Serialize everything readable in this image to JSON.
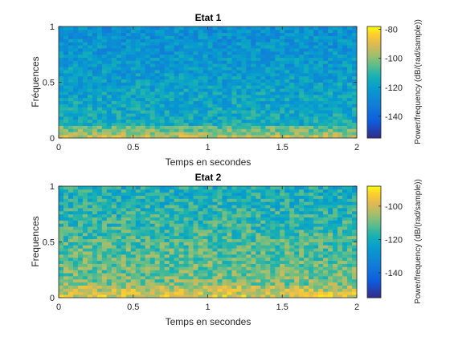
{
  "chart_data": [
    {
      "type": "heatmap",
      "title": "Etat 1",
      "xlabel": "Temps en secondes",
      "ylabel": "Fréquences",
      "xlim": [
        0,
        2
      ],
      "ylim": [
        0,
        1
      ],
      "xticks": [
        "0",
        "0.5",
        "1",
        "1.5",
        "2"
      ],
      "yticks": [
        "0",
        "0.5",
        "1"
      ],
      "colorbar": {
        "label": "Power/frequency (dB/(rad/sample))",
        "range": [
          -155,
          -78
        ],
        "ticks": [
          "-80",
          "-100",
          "-120",
          "-140"
        ]
      },
      "description_profile": {
        "low_freq_band_db": -92,
        "mid_freq_db": -115,
        "high_freq_db": -125
      }
    },
    {
      "type": "heatmap",
      "title": "Etat 2",
      "xlabel": "Temps en secondes",
      "ylabel": "Frequences",
      "xlim": [
        0,
        2
      ],
      "ylim": [
        0,
        1
      ],
      "xticks": [
        "0",
        "0.5",
        "1",
        "1.5",
        "2"
      ],
      "yticks": [
        "0",
        "0.5",
        "1"
      ],
      "colorbar": {
        "label": "Power/frequency (dB/(rad/sample))",
        "range": [
          -155,
          -88
        ],
        "ticks": [
          "-100",
          "-120",
          "-140"
        ]
      },
      "description_profile": {
        "low_freq_band_db": -98,
        "mid_freq_db": -108,
        "high_freq_db": -120
      }
    }
  ]
}
